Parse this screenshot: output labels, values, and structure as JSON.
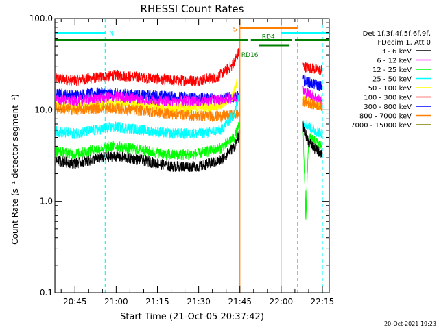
{
  "chart_data": {
    "type": "line",
    "title": "RHESSI Count Rates",
    "xlabel": "Start Time (21-Oct-05 20:37:42)",
    "ylabel": "Count Rate (s⁻¹ detector segment⁻¹)",
    "yscale": "log",
    "ylim": [
      0.1,
      100
    ],
    "xlim": [
      "20:37:42",
      "22:17:30"
    ],
    "y_ticks": [
      "0.1",
      "1.0",
      "10.0",
      "100.0"
    ],
    "x_ticks": [
      "20:45",
      "21:00",
      "21:15",
      "21:30",
      "21:45",
      "22:00",
      "22:15"
    ],
    "legend_position": "right",
    "legend_header": [
      "Det 1f,3f,4f,5f,6f,9f,",
      "FDecim 1, Att 0"
    ],
    "series": [
      {
        "name": "3 - 6 keV",
        "color": "#000000",
        "before_gap": [
          [
            "20:38",
            2.8
          ],
          [
            "20:45",
            2.6
          ],
          [
            "20:55",
            3.0
          ],
          [
            "21:00",
            3.1
          ],
          [
            "21:10",
            2.8
          ],
          [
            "21:20",
            2.4
          ],
          [
            "21:30",
            2.4
          ],
          [
            "21:38",
            2.8
          ],
          [
            "21:43",
            4.0
          ],
          [
            "21:45",
            5.5
          ]
        ],
        "after_gap": [
          [
            "22:08",
            6.5
          ],
          [
            "22:10",
            4.5
          ],
          [
            "22:12",
            3.8
          ],
          [
            "22:15",
            3.3
          ]
        ]
      },
      {
        "name": "6 - 12 keV",
        "color": "#ff00ff",
        "before_gap": [
          [
            "20:38",
            13
          ],
          [
            "20:45",
            12.5
          ],
          [
            "20:55",
            13.5
          ],
          [
            "21:00",
            14
          ],
          [
            "21:10",
            13
          ],
          [
            "21:20",
            12.5
          ],
          [
            "21:30",
            12.5
          ],
          [
            "21:38",
            13
          ],
          [
            "21:45",
            14
          ]
        ],
        "after_gap": [
          [
            "22:08",
            16
          ],
          [
            "22:12",
            14
          ],
          [
            "22:15",
            12.5
          ]
        ]
      },
      {
        "name": "12 - 25 keV",
        "color": "#00ff00",
        "before_gap": [
          [
            "20:38",
            3.5
          ],
          [
            "20:45",
            3.3
          ],
          [
            "20:55",
            3.8
          ],
          [
            "21:00",
            4.0
          ],
          [
            "21:10",
            3.6
          ],
          [
            "21:20",
            3.2
          ],
          [
            "21:30",
            3.3
          ],
          [
            "21:38",
            3.8
          ],
          [
            "21:43",
            5.0
          ],
          [
            "21:45",
            7.0
          ]
        ],
        "after_gap": [
          [
            "22:08",
            5.5
          ],
          [
            "22:09",
            0.65
          ],
          [
            "22:10",
            5.0
          ],
          [
            "22:15",
            4.0
          ]
        ]
      },
      {
        "name": "25 - 50 keV",
        "color": "#00ffff",
        "before_gap": [
          [
            "20:38",
            5.8
          ],
          [
            "20:45",
            5.5
          ],
          [
            "20:55",
            6.2
          ],
          [
            "21:00",
            6.5
          ],
          [
            "21:10",
            6.0
          ],
          [
            "21:20",
            5.5
          ],
          [
            "21:30",
            5.5
          ],
          [
            "21:38",
            6.0
          ],
          [
            "21:43",
            9.0
          ],
          [
            "21:45",
            16
          ]
        ],
        "after_gap": [
          [
            "22:08",
            7.5
          ],
          [
            "22:12",
            6.0
          ],
          [
            "22:15",
            5.5
          ]
        ]
      },
      {
        "name": "50 - 100 keV",
        "color": "#ffff00",
        "before_gap": [
          [
            "20:38",
            11
          ],
          [
            "20:45",
            10.5
          ],
          [
            "20:55",
            11.5
          ],
          [
            "21:00",
            12
          ],
          [
            "21:10",
            11
          ],
          [
            "21:20",
            10.5
          ],
          [
            "21:30",
            10.5
          ],
          [
            "21:38",
            11
          ],
          [
            "21:42",
            14
          ],
          [
            "21:44",
            20
          ]
        ],
        "after_gap": [
          [
            "22:08",
            13
          ],
          [
            "22:15",
            11
          ]
        ]
      },
      {
        "name": "100 - 300 keV",
        "color": "#ff0000",
        "before_gap": [
          [
            "20:38",
            22
          ],
          [
            "20:45",
            21
          ],
          [
            "20:55",
            23
          ],
          [
            "21:00",
            24
          ],
          [
            "21:10",
            22.5
          ],
          [
            "21:20",
            21
          ],
          [
            "21:30",
            21
          ],
          [
            "21:37",
            23
          ],
          [
            "21:42",
            30
          ],
          [
            "21:45",
            45
          ]
        ],
        "after_gap": [
          [
            "22:08",
            30
          ],
          [
            "22:12",
            28
          ],
          [
            "22:15",
            27
          ]
        ]
      },
      {
        "name": "300 - 800 keV",
        "color": "#0000ff",
        "before_gap": [
          [
            "20:38",
            15
          ],
          [
            "20:45",
            14.5
          ],
          [
            "20:55",
            15.5
          ],
          [
            "21:00",
            15
          ],
          [
            "21:10",
            14.5
          ],
          [
            "21:20",
            14
          ],
          [
            "21:30",
            13.5
          ],
          [
            "21:38",
            13.5
          ],
          [
            "21:45",
            14
          ]
        ],
        "after_gap": [
          [
            "22:08",
            21
          ],
          [
            "22:12",
            19
          ],
          [
            "22:15",
            18
          ]
        ]
      },
      {
        "name": "800 - 7000 keV",
        "color": "#ff8000",
        "before_gap": [
          [
            "20:38",
            10.5
          ],
          [
            "20:45",
            10
          ],
          [
            "20:55",
            10.5
          ],
          [
            "21:00",
            10.3
          ],
          [
            "21:10",
            9.8
          ],
          [
            "21:20",
            9.0
          ],
          [
            "21:30",
            8.6
          ],
          [
            "21:38",
            8.5
          ],
          [
            "21:45",
            9.0
          ]
        ],
        "after_gap": [
          [
            "22:08",
            12.5
          ],
          [
            "22:12",
            11.5
          ],
          [
            "22:15",
            11
          ]
        ]
      },
      {
        "name": "7000 - 15000 keV",
        "color": "#808000",
        "before_gap": [],
        "after_gap": []
      }
    ],
    "annotations": [
      {
        "label": "N",
        "color": "#00ffff",
        "bar": [
          "20:37:42",
          "20:56"
        ],
        "bar_y": 70
      },
      {
        "label": "",
        "color": "#00ffff",
        "bar": [
          "22:00",
          "22:17:30"
        ],
        "bar_y": 70
      },
      {
        "label": "S",
        "color": "#ff8000",
        "bar": [
          "21:45",
          "22:06"
        ],
        "bar_y": 78
      },
      {
        "label": "",
        "color": "#008000",
        "bar": [
          "20:37:42",
          "21:48"
        ],
        "bar_y": 58
      },
      {
        "label": "RD4",
        "color": "#008000",
        "bar": [
          "21:49",
          "22:04"
        ],
        "bar_y": 58
      },
      {
        "label": "",
        "color": "#008000",
        "bar": [
          "22:05",
          "22:17:30"
        ],
        "bar_y": 58
      },
      {
        "label": "RD16",
        "color": "#008000",
        "bar": [
          "21:52",
          "22:03"
        ],
        "bar_y": 51
      }
    ],
    "vertical_lines": [
      {
        "time": "20:37:45",
        "color": "#00ffff",
        "style": "solid"
      },
      {
        "time": "20:56",
        "color": "#00ffff",
        "style": "dashed"
      },
      {
        "time": "21:45",
        "color": "#ff8000",
        "style": "solid"
      },
      {
        "time": "22:00",
        "color": "#00ffff",
        "style": "solid"
      },
      {
        "time": "22:06",
        "color": "#ff8000",
        "style": "dashed"
      },
      {
        "time": "22:15",
        "color": "#00ffff",
        "style": "dashed"
      }
    ],
    "footer_timestamp": "20-Oct-2021 19:23"
  }
}
